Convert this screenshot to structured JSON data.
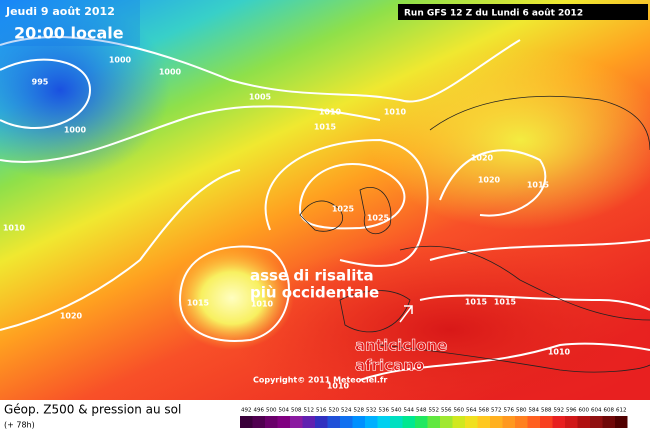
{
  "header": {
    "date": "Jeudi 9 août 2012",
    "time": "20:00 locale",
    "run": "Run GFS 12 Z du Lundi 6 août 2012"
  },
  "annotations": {
    "axis_line1": "asse di risalita",
    "axis_line2": "più occidentale",
    "high_line1": "anticiclone",
    "high_line2": "africano"
  },
  "copyright": "Copyright© 2011 Meteociel.fr",
  "footer": {
    "title": "Géop. Z500 & pression au sol",
    "lead": "(+ 78h)"
  },
  "isobar_labels": [
    "995",
    "1000",
    "1000",
    "1000",
    "1005",
    "1010",
    "1010",
    "1015",
    "1020",
    "1020",
    "1015",
    "1025",
    "1025",
    "1010",
    "1015",
    "1010",
    "1020",
    "1015",
    "1015",
    "1010",
    "1010"
  ],
  "scale_labels": [
    "492",
    "496",
    "500",
    "504",
    "508",
    "512",
    "516",
    "520",
    "524",
    "528",
    "532",
    "536",
    "540",
    "544",
    "548",
    "552",
    "556",
    "560",
    "564",
    "568",
    "572",
    "576",
    "580",
    "584",
    "588",
    "592",
    "596",
    "600",
    "604",
    "608",
    "612"
  ]
}
